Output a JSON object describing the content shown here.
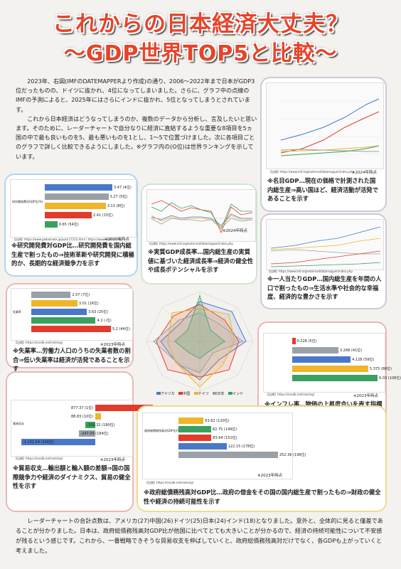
{
  "title": {
    "line1": "これからの日本経済大丈夫？",
    "line2": "～GDP世界TOP5と比較～"
  },
  "intro": [
    "2023年、右図(IMFのDATEMAPPERより作成)の通り、2006～2022年まで日本がGDP3位だったものの、ドイツに抜かれ、4位になってしまいました。さらに、グラフ中の点線のIMFの予測によると、2025年にはさらにインドに抜かれ、5位となってしまうとされています。",
    "これから日本経済はどうなってしまうのか、複数のデータから分析し、言及したいと思います。そのために、レーダーチャートで自分なりに経済に直結するような重要な8項目を5ヵ国の中で最も良いものを5、最も悪いものを1とし、1～5で位置づけました。次に各項目ごとのグラフで詳しく比較できるようにしました。※グラフ内の(O位)は世界ランキングを示しています。"
  ],
  "conclusion": "レーダーチャートの合計点数は、アメリカ(27)中国(26)ドイツ(25)日本(24)インド(18)となりました。意外と、全体的に見ると僅差であることが分かりました。日本は、政府総債務残高対GDP比が他国に比べてとても大きいことが分かるので、経済の持続可能性について不安感が残るという感じです。これから、一番戦略できそうな貿易収支を伸ばしていくと、政府総債務残高対だけでなく、各GDPも上がっていくと考えました。",
  "colors": {
    "usa": "#4a78c8",
    "china": "#e33b2b",
    "germany": "#f0b429",
    "japan": "#9aa0a6",
    "india": "#3aa15f"
  },
  "countries": [
    "アメリカ",
    "中国",
    "ドイツ",
    "日本",
    "インド"
  ],
  "nominal_gdp": {
    "source": "【出典】https://www.imf.org/external/datamapper/index.php",
    "stamp": "※2024年時点",
    "caption": "※名目GDP…現在の価格で計測された国内総生産⇒高い国ほど、経済活動が活発であることを示す"
  },
  "rd": {
    "source": "【出典】https://www.globalnote.jp/post-17253.html / https://www.unesco.org",
    "stamp": "※2020年時点",
    "caption": "※研究開発費対GDP比…研究開発費を国内総生産で割ったもの⇒技術革新や研究開発に積極的か、長期的な経済競争力を示す",
    "rows": [
      {
        "value": "3.47",
        "rank": "(4位)",
        "country": "usa",
        "pct": 3.47
      },
      {
        "value": "3.27",
        "rank": "(5位)",
        "country": "japan",
        "pct": 3.27
      },
      {
        "value": "3.13",
        "rank": "(8位)",
        "country": "germany",
        "pct": 3.13
      },
      {
        "value": "2.41",
        "rank": "(15位)",
        "country": "china",
        "pct": 2.41
      },
      {
        "value": "0.65",
        "rank": "(54位)",
        "country": "india",
        "pct": 0.65
      }
    ]
  },
  "real_gdp": {
    "source": "【出典】https://www.imf.org/external/datamapper/index.php",
    "stamp": "※2024年時点",
    "caption": "※実質GDP成長率…国内総生産の実質値に基づいた経済成長率⇒経済の健全性や成長ポテンシャルを示す"
  },
  "per_capita": {
    "source": "【出典】https://www.imf.org/external/datamapper/index.php",
    "caption": "※一人当たりGDP…国内総生産を年間の人口で割ったもの⇒生活水準や社会的な幸福度、経済的な豊かさを示す"
  },
  "unemployment": {
    "source": "【出典】https://ecodb.net/ranking/",
    "stamp": "※2023年時点",
    "caption": "※失業率…労働力人口のうちの失業者数の割合⇒低い失業率は経済が活発であることを示す",
    "rows": [
      {
        "value": "2.57",
        "rank": "(7位)",
        "country": "japan",
        "pct": 2.57
      },
      {
        "value": "3.01",
        "rank": "(16位)",
        "country": "germany",
        "pct": 3.01
      },
      {
        "value": "3.63",
        "rank": "(25位)",
        "country": "usa",
        "pct": 3.63
      },
      {
        "value": "4.2",
        "rank": "(-位)",
        "country": "india",
        "pct": 4.2
      },
      {
        "value": "5.2",
        "rank": "(44位)",
        "country": "china",
        "pct": 5.2
      }
    ]
  },
  "radar": {
    "legend": [
      "アメリカ",
      "中国",
      "ドイツ",
      "日本",
      "インド"
    ]
  },
  "inflation": {
    "source": "【出典】https://ecodb.net/ranking/",
    "stamp": "※2023年時点",
    "caption": "※インフレ率…物価の上昇度合いを表す指標⇒経済の安定性を示す",
    "rows": [
      {
        "value": "0.228",
        "rank": "(5位)",
        "country": "china",
        "pct": 0.228
      },
      {
        "value": "3.268",
        "rank": "(41位)",
        "country": "japan",
        "pct": 3.268
      },
      {
        "value": "4.128",
        "rank": "(59位)",
        "country": "usa",
        "pct": 4.128
      },
      {
        "value": "5.375",
        "rank": "(88位)",
        "country": "germany",
        "pct": 5.375
      },
      {
        "value": "6.03",
        "rank": "(108位)",
        "country": "india",
        "pct": 6.03
      }
    ],
    "labels": [
      "中国",
      "日本",
      "アメリカ",
      "ドイツ",
      "インド"
    ]
  },
  "trade": {
    "source": "【出典】https://ecodb.net/ranking/",
    "stamp": "※2023年時点",
    "caption": "※貿易収支…輸出額と輸入額の差額⇒国の国際競争力や経済のダイナミクス、貿易の健全性を示す",
    "rows": [
      {
        "value": "877.37",
        "rank": "(1位)",
        "country": "china",
        "pct": 877.37
      },
      {
        "value": "88.83",
        "rank": "(10位)",
        "country": "germany",
        "pct": 88.83
      },
      {
        "value": "-150.32",
        "rank": "(180位)",
        "country": "india",
        "pct": -150.32
      },
      {
        "value": "-247.04",
        "rank": "(184位)",
        "country": "japan",
        "pct": -247.04
      },
      {
        "value": "-1,131.54",
        "rank": "(196位)",
        "country": "usa",
        "pct": -1131.54
      }
    ]
  },
  "debt": {
    "source": "【出典】https://ecodb.net/ranking/",
    "stamp": "※2023年時点",
    "caption": "※政府総債務残高対GDP比…政府の借金をその国の国内総生産で割ったもの⇒財政の健全性や経済の持続可能性を示す",
    "rows": [
      {
        "value": "63.62",
        "rank": "(120位)",
        "country": "germany",
        "pct": 63.62
      },
      {
        "value": "82.75",
        "rank": "(149位)",
        "country": "india",
        "pct": 82.75
      },
      {
        "value": "83.64",
        "rank": "(152位)",
        "country": "china",
        "pct": 83.64
      },
      {
        "value": "122.15",
        "rank": "(178位)",
        "country": "usa",
        "pct": 122.15
      },
      {
        "value": "252.36",
        "rank": "(196位)",
        "country": "japan",
        "pct": 252.36
      }
    ]
  }
}
